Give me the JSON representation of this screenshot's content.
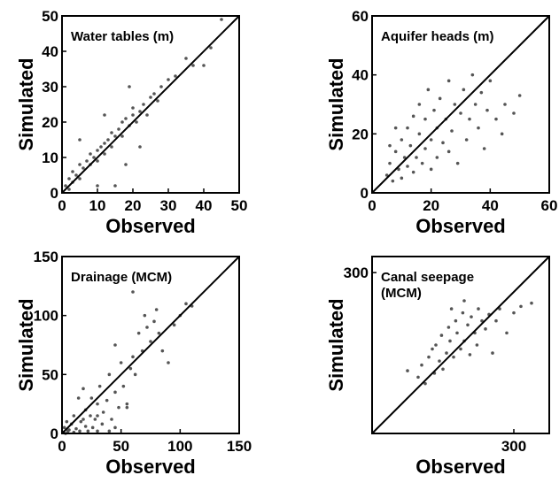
{
  "chart_data": [
    {
      "type": "scatter",
      "title": [
        "Water tables (m)"
      ],
      "xlabel": "Observed",
      "ylabel": "Simulated",
      "color": "#555555",
      "xlim": [
        0,
        50
      ],
      "ylim": [
        0,
        50
      ],
      "xticks": [
        0,
        10,
        20,
        30,
        40,
        50
      ],
      "yticks": [
        0,
        10,
        20,
        30,
        40,
        50
      ],
      "x": [
        1,
        2,
        2,
        3,
        3,
        4,
        5,
        5,
        6,
        7,
        8,
        8,
        9,
        10,
        10,
        11,
        12,
        12,
        13,
        14,
        14,
        15,
        16,
        17,
        17,
        18,
        19,
        20,
        20,
        21,
        22,
        23,
        24,
        25,
        26,
        27,
        28,
        30,
        32,
        35,
        37,
        40,
        42,
        45,
        10,
        15,
        12,
        18,
        5,
        22,
        19
      ],
      "y": [
        2,
        1,
        4,
        3,
        6,
        5,
        4,
        8,
        7,
        9,
        8,
        11,
        10,
        12,
        9,
        13,
        14,
        11,
        15,
        13,
        17,
        16,
        18,
        16,
        20,
        21,
        19,
        22,
        24,
        20,
        23,
        25,
        22,
        27,
        28,
        26,
        30,
        32,
        33,
        38,
        36,
        36,
        41,
        49,
        2,
        2,
        22,
        8,
        15,
        13,
        30
      ]
    },
    {
      "type": "scatter",
      "title": [
        "Aquifer heads (m)"
      ],
      "xlabel": "Observed",
      "ylabel": "Simulated",
      "color": "#555555",
      "xlim": [
        0,
        60
      ],
      "ylim": [
        0,
        60
      ],
      "xticks": [
        0,
        20,
        40,
        60
      ],
      "yticks": [
        0,
        20,
        40,
        60
      ],
      "x": [
        5,
        6,
        7,
        8,
        9,
        10,
        10,
        11,
        12,
        12,
        13,
        14,
        14,
        15,
        16,
        16,
        17,
        18,
        18,
        19,
        20,
        20,
        21,
        22,
        22,
        23,
        24,
        25,
        26,
        26,
        27,
        28,
        29,
        30,
        31,
        32,
        33,
        34,
        35,
        36,
        37,
        38,
        39,
        40,
        42,
        44,
        45,
        48,
        50,
        8,
        6
      ],
      "y": [
        6,
        10,
        4,
        14,
        8,
        18,
        5,
        12,
        22,
        9,
        16,
        7,
        26,
        12,
        20,
        30,
        10,
        15,
        25,
        35,
        18,
        8,
        28,
        12,
        22,
        32,
        17,
        25,
        38,
        14,
        21,
        30,
        10,
        27,
        35,
        18,
        25,
        40,
        30,
        22,
        34,
        15,
        28,
        38,
        25,
        20,
        30,
        27,
        33,
        22,
        16
      ]
    },
    {
      "type": "scatter",
      "title": [
        "Drainage (MCM)"
      ],
      "xlabel": "Observed",
      "ylabel": "Simulated",
      "color": "#555555",
      "xlim": [
        0,
        150
      ],
      "ylim": [
        0,
        150
      ],
      "xticks": [
        0,
        50,
        100,
        150
      ],
      "yticks": [
        0,
        50,
        100,
        150
      ],
      "x": [
        1,
        2,
        3,
        4,
        5,
        6,
        8,
        10,
        10,
        12,
        14,
        15,
        16,
        18,
        20,
        20,
        22,
        24,
        25,
        26,
        28,
        30,
        30,
        32,
        34,
        35,
        38,
        40,
        40,
        42,
        45,
        45,
        48,
        50,
        52,
        55,
        58,
        60,
        60,
        62,
        65,
        68,
        70,
        72,
        75,
        78,
        80,
        82,
        85,
        90,
        95,
        100,
        105,
        110,
        45,
        55,
        30,
        18
      ],
      "y": [
        1,
        5,
        0,
        10,
        2,
        3,
        8,
        1,
        15,
        4,
        30,
        2,
        10,
        38,
        6,
        20,
        2,
        15,
        30,
        5,
        12,
        25,
        2,
        40,
        8,
        18,
        28,
        50,
        2,
        12,
        35,
        5,
        22,
        60,
        40,
        25,
        55,
        120,
        65,
        50,
        85,
        70,
        100,
        90,
        78,
        95,
        105,
        85,
        70,
        60,
        92,
        100,
        110,
        108,
        75,
        22,
        15,
        12
      ]
    },
    {
      "type": "scatter",
      "title": [
        "Canal seepage",
        "(MCM)"
      ],
      "xlabel": "Observed",
      "ylabel": "Simulated",
      "color": "#555555",
      "xlim": [
        100,
        350
      ],
      "ylim": [
        100,
        320
      ],
      "xticks": [
        300
      ],
      "yticks": [
        300
      ],
      "x": [
        150,
        165,
        170,
        175,
        180,
        185,
        188,
        190,
        195,
        198,
        200,
        205,
        208,
        210,
        215,
        218,
        220,
        225,
        228,
        230,
        235,
        238,
        240,
        245,
        248,
        250,
        255,
        260,
        265,
        270,
        275,
        280,
        290,
        300,
        310,
        325,
        230,
        212
      ],
      "y": [
        178,
        170,
        185,
        162,
        195,
        205,
        175,
        210,
        190,
        222,
        180,
        200,
        232,
        215,
        195,
        240,
        225,
        205,
        250,
        215,
        235,
        198,
        245,
        225,
        210,
        255,
        240,
        230,
        248,
        200,
        240,
        255,
        225,
        250,
        258,
        262,
        265,
        255
      ]
    }
  ]
}
